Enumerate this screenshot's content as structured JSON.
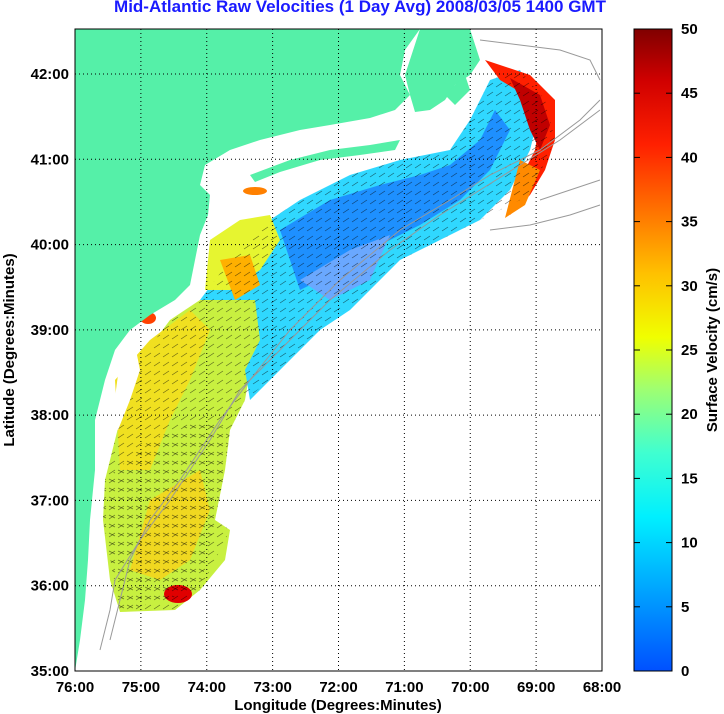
{
  "title": "Mid-Atlantic Raw Velocities (1 Day Avg) 2008/03/05 1400 GMT",
  "x_axis": {
    "label": "Longitude (Degrees:Minutes)",
    "ticks": [
      "76:00",
      "75:00",
      "74:00",
      "73:00",
      "72:00",
      "71:00",
      "70:00",
      "69:00",
      "68:00"
    ]
  },
  "y_axis": {
    "label": "Latitude (Degrees:Minutes)",
    "ticks": [
      "42:00",
      "41:00",
      "40:00",
      "39:00",
      "38:00",
      "37:00",
      "36:00",
      "35:00"
    ]
  },
  "colorbar": {
    "label": "Surface Velocity (cm/s)",
    "ticks": [
      "50",
      "45",
      "40",
      "35",
      "30",
      "25",
      "20",
      "15",
      "10",
      "5",
      "0"
    ],
    "range": [
      0,
      50
    ]
  },
  "colors": {
    "land": "#55f0a8",
    "ocean": "#ffffff",
    "grid": "#000000",
    "title": "#1a1aff",
    "bathymetry": "#999999"
  }
}
